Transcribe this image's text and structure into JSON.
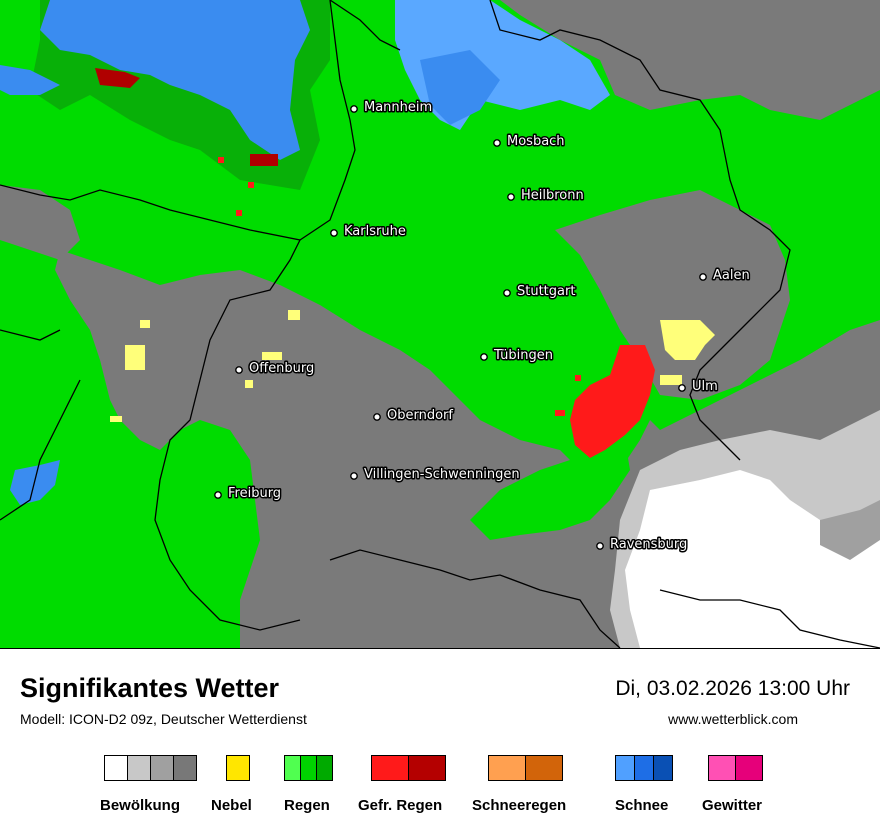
{
  "map": {
    "cities": [
      {
        "name": "Mannheim"
      },
      {
        "name": "Mosbach"
      },
      {
        "name": "Heilbronn"
      },
      {
        "name": "Karlsruhe"
      },
      {
        "name": "Aalen"
      },
      {
        "name": "Stuttgart"
      },
      {
        "name": "Tübingen"
      },
      {
        "name": "Offenburg"
      },
      {
        "name": "Ulm"
      },
      {
        "name": "Oberndorf"
      },
      {
        "name": "Villingen-Schwenningen"
      },
      {
        "name": "Freiburg"
      },
      {
        "name": "Ravensburg"
      }
    ],
    "colors": {
      "rain": "#00dc00",
      "rain_dark": "#08b008",
      "overcast": "#7a7a7a",
      "cloud_light": "#c8c8c8",
      "clear": "#ffffff",
      "fog": "#ffff7a",
      "freezing_rain": "#ff1a1a",
      "freezing_rain_dark": "#b00000",
      "snow": "#3a8cf0",
      "snow_light": "#5aa8ff"
    }
  },
  "footer": {
    "title": "Signifikantes Wetter",
    "subtitle": "Modell: ICON-D2 09z, Deutscher Wetterdienst",
    "datetime": "Di, 03.02.2026 13:00 Uhr",
    "website": "www.wetterblick.com"
  },
  "legend": [
    {
      "label": "Bewölkung",
      "colors": [
        "#ffffff",
        "#c8c8c8",
        "#a0a0a0",
        "#787878"
      ]
    },
    {
      "label": "Nebel",
      "colors": [
        "#ffe600"
      ]
    },
    {
      "label": "Regen",
      "colors": [
        "#50ff50",
        "#00d200",
        "#00aa00"
      ]
    },
    {
      "label": "Gefr. Regen",
      "colors": [
        "#ff1a1a",
        "#b40000"
      ]
    },
    {
      "label": "Schneeregen",
      "colors": [
        "#ffa050",
        "#d2640a"
      ]
    },
    {
      "label": "Schnee",
      "colors": [
        "#50a0ff",
        "#1e6ee6",
        "#0a50b4"
      ]
    },
    {
      "label": "Gewitter",
      "colors": [
        "#ff50b4",
        "#e6007a"
      ]
    }
  ]
}
